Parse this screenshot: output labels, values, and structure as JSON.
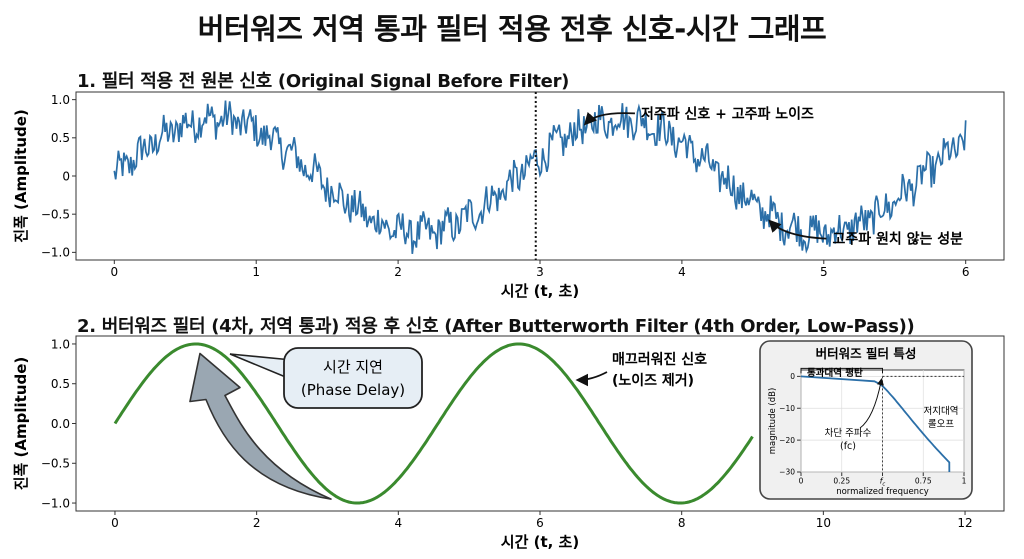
{
  "title": "버터워즈 저역 통과 필터 적용 전후 신호-시간 그래프",
  "chart_data": [
    {
      "type": "line",
      "title": "1. 필터 적용 전 원본 신호 (Original Signal Before Filter)",
      "xlabel": "시간 (t, 초)",
      "ylabel": "진폭 (Amplitude)",
      "xlim": [
        -0.27,
        6.27
      ],
      "ylim": [
        -1.1,
        1.1
      ],
      "xticks": [
        0,
        1,
        2,
        3,
        4,
        5,
        6
      ],
      "yticks": [
        -1.0,
        -0.5,
        0,
        0.5,
        1.0
      ],
      "xtick_labels": [
        "0",
        "1",
        "2",
        "3",
        "4",
        "5",
        "6"
      ],
      "ytick_labels": [
        "−1.0",
        "−0.5",
        "0",
        "0.5",
        "1.0"
      ],
      "signal": {
        "x_start": 0,
        "x_end": 6,
        "amplitude": 0.75,
        "period": 2.85,
        "noise_amplitude": 0.22
      },
      "series": [
        {
          "color": "#2b6fa8"
        }
      ],
      "reference_line_x": 2.97,
      "annotations": [
        {
          "text": "저주파 신호 + 고주파 노이즈",
          "x": 3.5,
          "y": 0.82,
          "arrow_to": [
            3.3,
            0.66
          ]
        },
        {
          "text": "고주파 원치 않는 성분",
          "x": 4.85,
          "y": -0.82,
          "arrow_to": [
            4.6,
            -0.62
          ]
        }
      ]
    },
    {
      "type": "line",
      "title": "2. 버터워즈 필터 (4차, 저역 통과) 적용 후 신호 (After Butterworth Filter (4th Order, Low-Pass))",
      "xlabel": "시간 (t, 초)",
      "ylabel": "진폭 (Amplitude)",
      "xlim": [
        -0.55,
        12.55
      ],
      "ylim": [
        -1.1,
        1.1
      ],
      "xticks": [
        0,
        2,
        4,
        6,
        8,
        10,
        12
      ],
      "yticks": [
        -1.0,
        -0.5,
        0,
        0.5,
        1.0
      ],
      "xtick_labels": [
        "0",
        "2",
        "4",
        "6",
        "8",
        "10",
        "12"
      ],
      "ytick_labels": [
        "−1.0",
        "−0.5",
        "0.0",
        "0.5",
        "1.0"
      ],
      "signal": {
        "x_start": 0,
        "x_end": 9,
        "amplitude": 1.0,
        "period": 4.56
      },
      "series": [
        {
          "color": "#3a8a2e"
        }
      ],
      "annotations": [
        {
          "text": "시간 지연\n(Phase Delay)",
          "style": "callout-box"
        },
        {
          "text": "매끄러워진 신호\n(노이즈 제거)",
          "x": 6.4,
          "y": 0.62,
          "arrow_to": [
            6.5,
            0.55
          ]
        }
      ],
      "phase_arrow": {
        "from": [
          3.05,
          -0.95
        ],
        "to": [
          1.2,
          0.88
        ],
        "color": "#9aa7b2"
      }
    },
    {
      "type": "line",
      "title": "버터워즈 필터 특성",
      "xlabel": "normalized frequency",
      "ylabel": "magnitude (dB)",
      "xlim": [
        0,
        1
      ],
      "ylim": [
        -30,
        2
      ],
      "xticks": [
        0,
        0.25,
        0.5,
        0.75,
        1
      ],
      "xtick_labels": [
        "0",
        "0.25",
        "fc",
        "0.75",
        "1"
      ],
      "yticks": [
        0,
        -10,
        -20,
        -30
      ],
      "ytick_labels": [
        "0",
        "−10",
        "−20",
        "−30"
      ],
      "cutoff": 0.5,
      "rolloff_db_end": -30,
      "rolloff_x_end": 0.91,
      "labels": {
        "passband": "통과대역 평탄",
        "cutoff": "차단 주파수",
        "cutoff_symbol": "(fc)",
        "stopband_1": "저지대역",
        "stopband_2": "롤오프"
      },
      "series": [
        {
          "color": "#2b6fa8"
        }
      ]
    }
  ]
}
